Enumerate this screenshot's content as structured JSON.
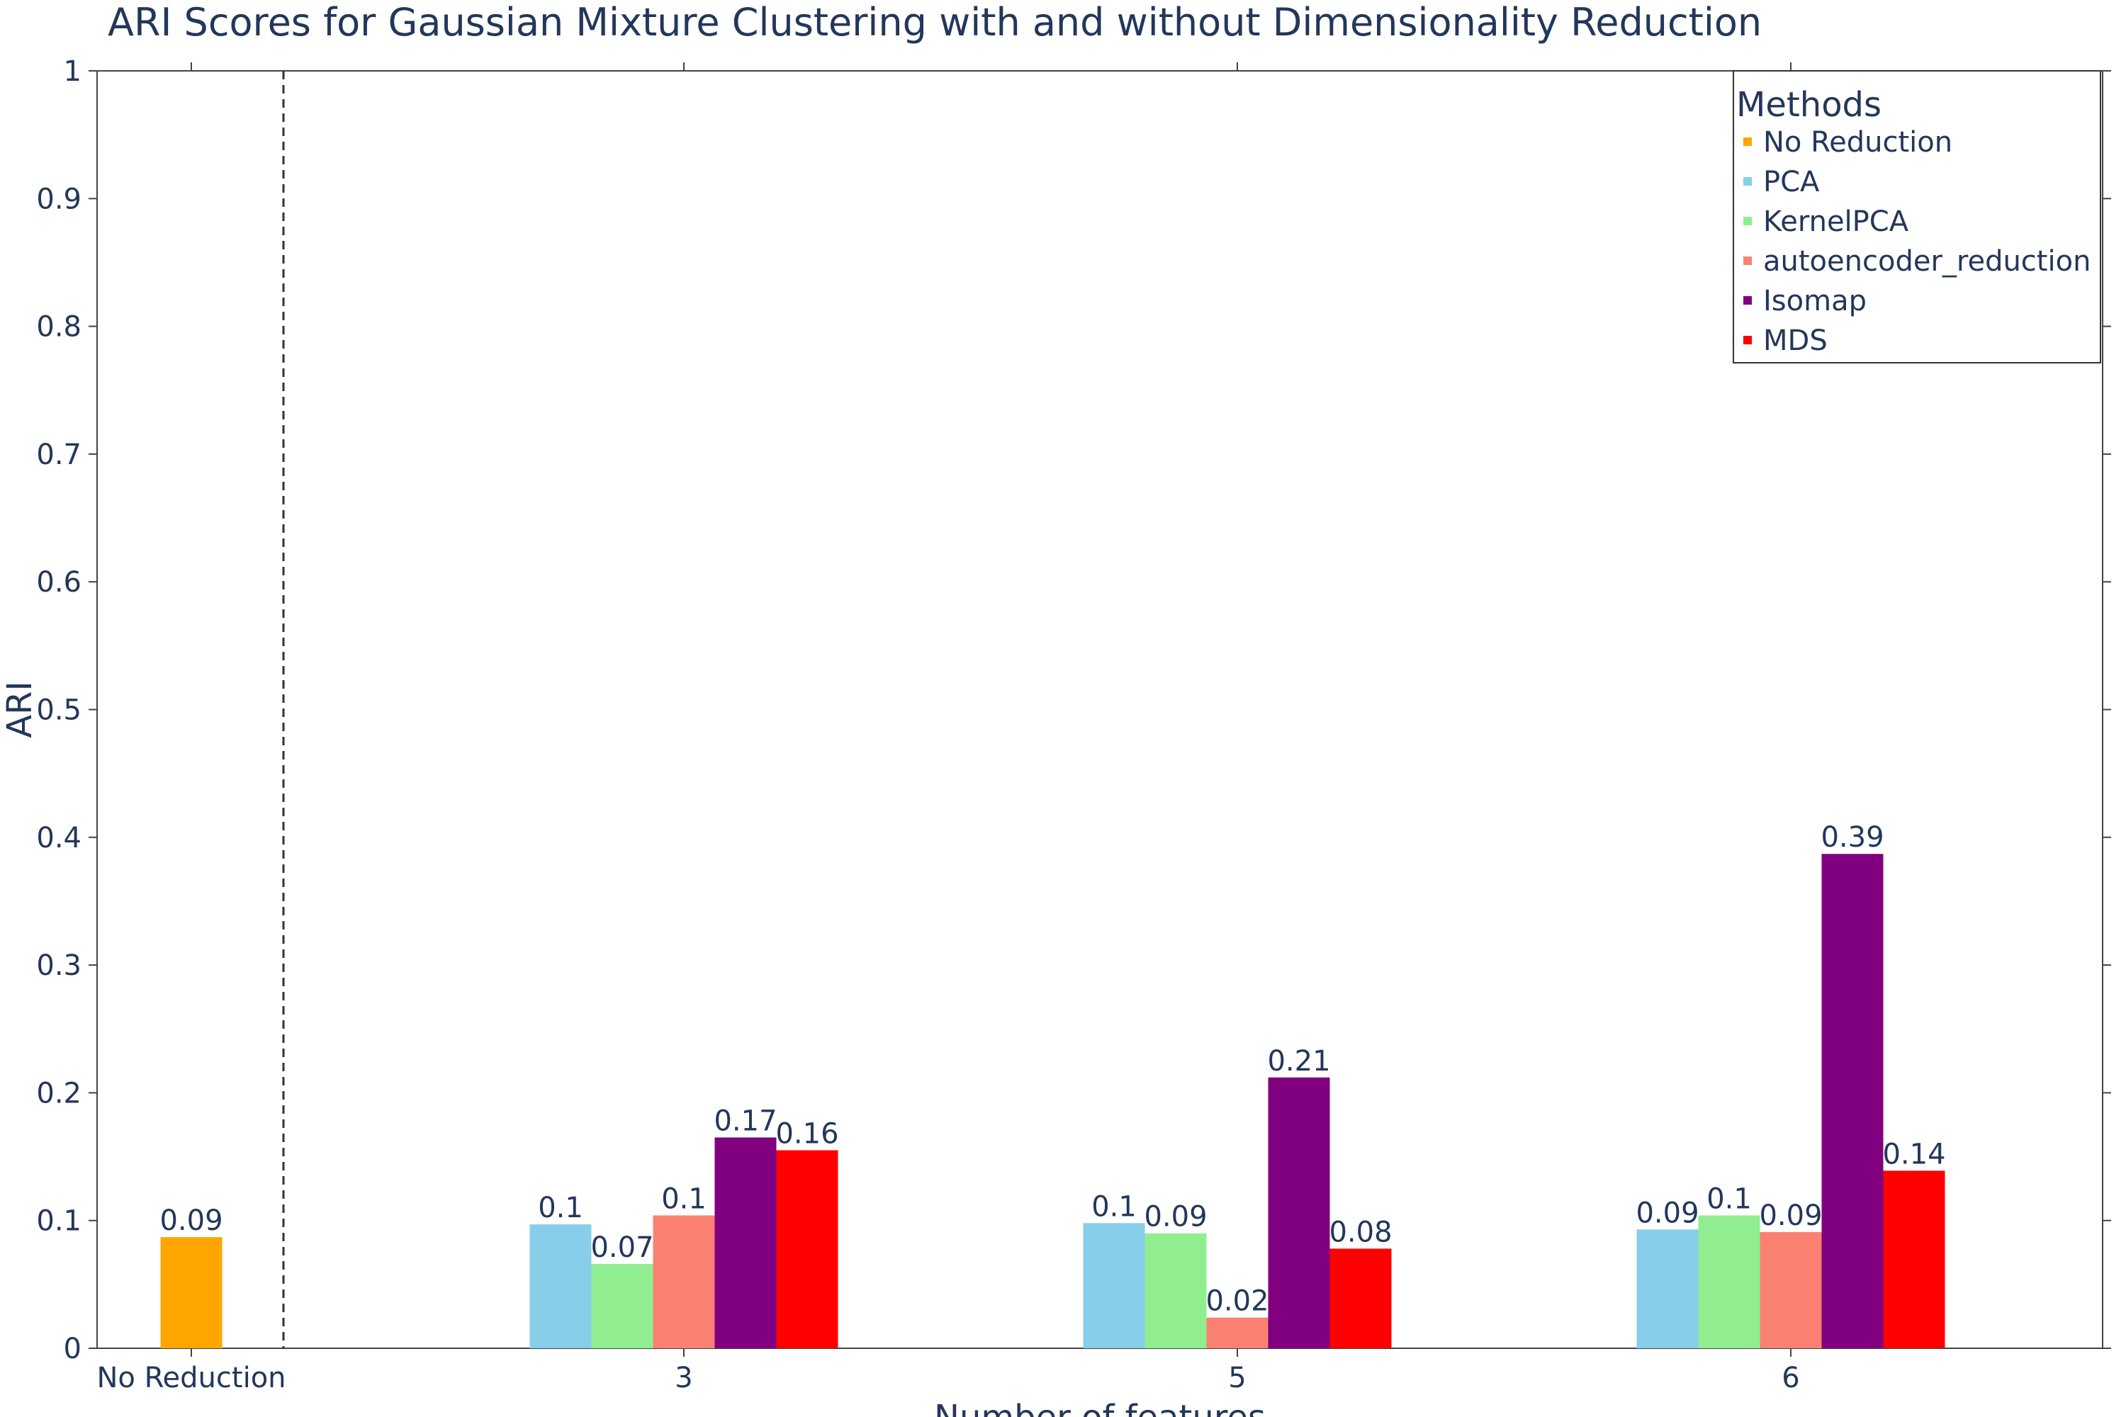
{
  "chart_data": {
    "type": "bar",
    "title": "ARI Scores for Gaussian Mixture Clustering with and without Dimensionality Reduction",
    "xlabel": "Number of features",
    "ylabel": "ARI",
    "ylim": [
      0,
      1
    ],
    "yticks": [
      "0",
      "0.1",
      "0.2",
      "0.3",
      "0.4",
      "0.5",
      "0.6",
      "0.7",
      "0.8",
      "0.9",
      "1"
    ],
    "categories": [
      "No Reduction",
      "3",
      "5",
      "6"
    ],
    "grid": false,
    "legend": {
      "title": "Methods",
      "placement": "top-right"
    },
    "series": [
      {
        "name": "No Reduction",
        "color": "#FFA500",
        "values": [
          0.087,
          null,
          null,
          null
        ],
        "labels": [
          "0.09",
          null,
          null,
          null
        ]
      },
      {
        "name": "PCA",
        "color": "#87CEEB",
        "values": [
          null,
          0.097,
          0.098,
          0.093
        ],
        "labels": [
          null,
          "0.1",
          "0.1",
          "0.09"
        ]
      },
      {
        "name": "KernelPCA",
        "color": "#90EE90",
        "values": [
          null,
          0.066,
          0.09,
          0.104
        ],
        "labels": [
          null,
          "0.07",
          "0.09",
          "0.1"
        ]
      },
      {
        "name": "autoencoder_reduction",
        "color": "#FA8072",
        "values": [
          null,
          0.104,
          0.024,
          0.091
        ],
        "labels": [
          null,
          "0.1",
          "0.02",
          "0.09"
        ]
      },
      {
        "name": "Isomap",
        "color": "#800080",
        "values": [
          null,
          0.165,
          0.212,
          0.387
        ],
        "labels": [
          null,
          "0.17",
          "0.21",
          "0.39"
        ]
      },
      {
        "name": "MDS",
        "color": "#FF0000",
        "values": [
          null,
          0.155,
          0.078,
          0.139
        ],
        "labels": [
          null,
          "0.16",
          "0.08",
          "0.14"
        ]
      }
    ]
  }
}
